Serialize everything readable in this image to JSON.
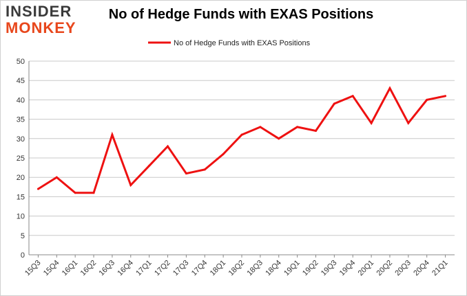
{
  "logo": {
    "line1": "INSIDER",
    "line2": "MONKEY"
  },
  "colors": {
    "series": "#ee1111",
    "grid": "#c8c8c8",
    "axis": "#888888",
    "logo_dark": "#3a3a3a",
    "logo_accent": "#e8471c"
  },
  "chart_data": {
    "type": "line",
    "title": "No of Hedge Funds with EXAS Positions",
    "xlabel": "",
    "ylabel": "",
    "ylim": [
      0,
      50
    ],
    "yticks": [
      0,
      5,
      10,
      15,
      20,
      25,
      30,
      35,
      40,
      45,
      50
    ],
    "grid": true,
    "legend_position": "top-center",
    "categories": [
      "15Q3",
      "15Q4",
      "16Q1",
      "16Q2",
      "16Q3",
      "16Q4",
      "17Q1",
      "17Q2",
      "17Q3",
      "17Q4",
      "18Q1",
      "18Q2",
      "18Q3",
      "18Q4",
      "19Q1",
      "19Q2",
      "19Q3",
      "19Q4",
      "20Q1",
      "20Q2",
      "20Q3",
      "20Q4",
      "21Q1"
    ],
    "series": [
      {
        "name": "No of Hedge Funds with EXAS Positions",
        "values": [
          17,
          20,
          16,
          16,
          31,
          18,
          23,
          28,
          21,
          22,
          26,
          31,
          33,
          30,
          33,
          32,
          39,
          41,
          34,
          43,
          34,
          40,
          41
        ]
      }
    ]
  }
}
